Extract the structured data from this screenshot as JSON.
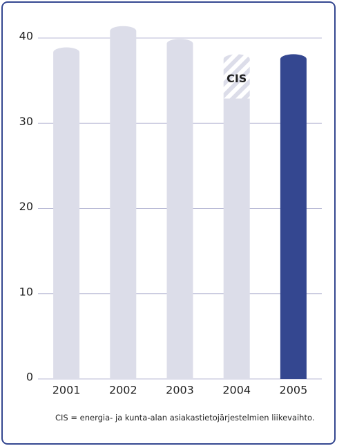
{
  "chart_data": {
    "type": "bar",
    "stacked": true,
    "categories": [
      "2001",
      "2002",
      "2003",
      "2004",
      "2005"
    ],
    "series": [
      {
        "values": [
          38.9,
          41.4,
          39.9,
          32.9,
          38.1
        ],
        "colors": [
          "#dcdde9",
          "#dcdde9",
          "#dcdde9",
          "#dcdde9",
          "#344790"
        ]
      },
      {
        "name": "CIS",
        "values": [
          null,
          null,
          null,
          5.2,
          null
        ],
        "color": "hatch"
      }
    ],
    "ylim": [
      0,
      42
    ],
    "yticks": [
      0,
      10,
      20,
      30,
      40
    ],
    "grid": true,
    "note": "CIS = energia- ja kunta-alan asiakastietojärjestelmien liikevaihto."
  }
}
